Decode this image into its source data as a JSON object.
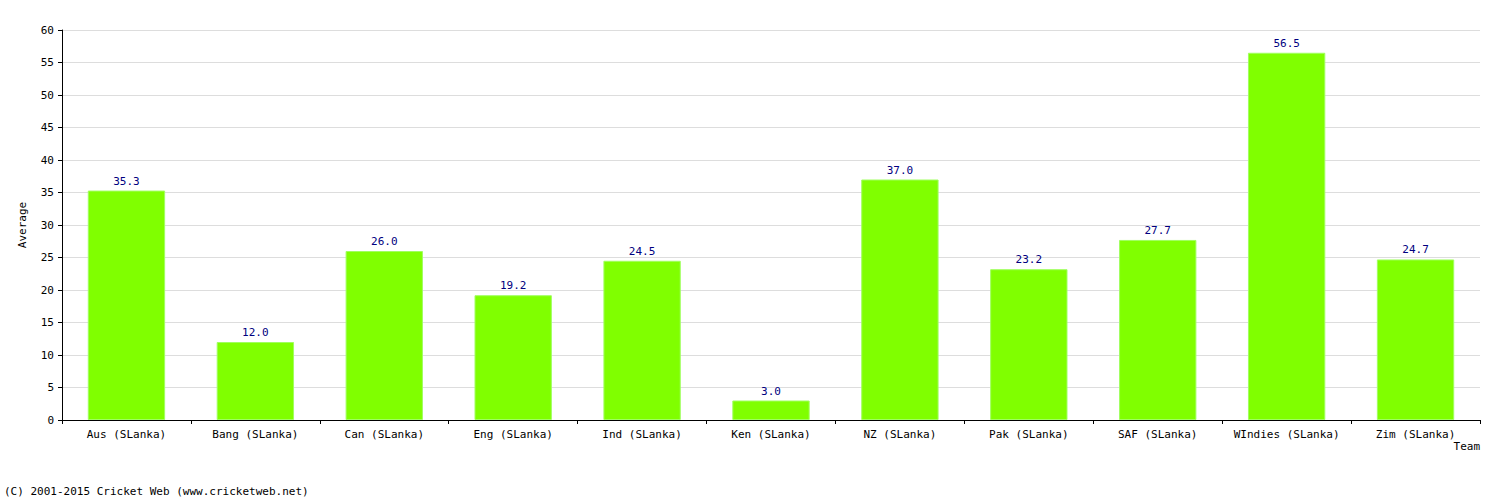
{
  "chart_data": {
    "type": "bar",
    "categories": [
      "Aus (SLanka)",
      "Bang (SLanka)",
      "Can (SLanka)",
      "Eng (SLanka)",
      "Ind (SLanka)",
      "Ken (SLanka)",
      "NZ (SLanka)",
      "Pak (SLanka)",
      "SAF (SLanka)",
      "WIndies (SLanka)",
      "Zim (SLanka)"
    ],
    "values": [
      35.3,
      12.0,
      26.0,
      19.2,
      24.5,
      3.0,
      37.0,
      23.2,
      27.7,
      56.5,
      24.7
    ],
    "value_labels": [
      "35.3",
      "12.0",
      "26.0",
      "19.2",
      "24.5",
      "3.0",
      "37.0",
      "23.2",
      "27.7",
      "56.5",
      "24.7"
    ],
    "color": "#80ff00",
    "x_label": "Team",
    "y_label": "Average",
    "annotations": [
      "(C) 2001-2015 Cricket Web (www.cricketweb.net)"
    ],
    "ylim": [
      0,
      60
    ],
    "yticks": [
      0,
      5,
      10,
      15,
      20,
      25,
      30,
      35,
      40,
      45,
      50,
      55,
      60
    ],
    "grid": true,
    "data_labels": true
  }
}
